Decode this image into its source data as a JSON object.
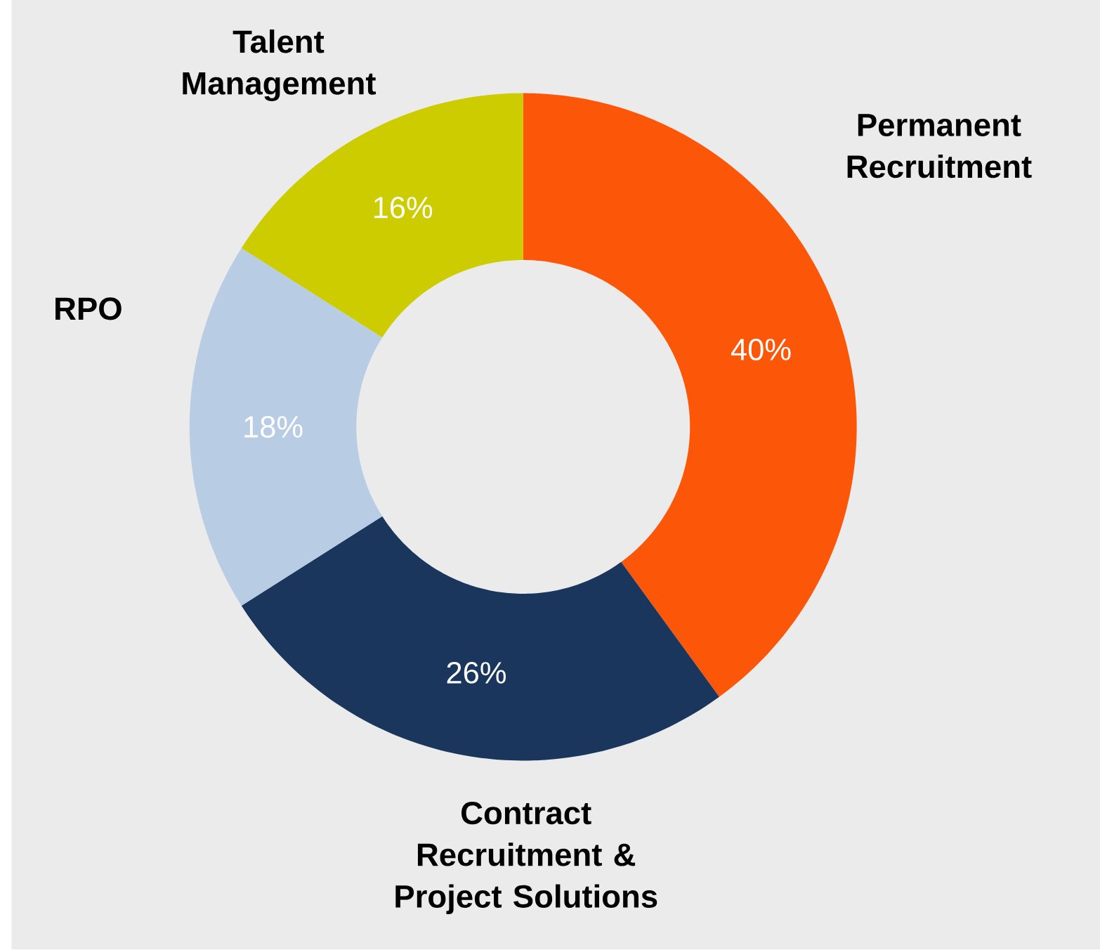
{
  "chart_data": {
    "type": "donut",
    "categories": [
      "Permanent Recruitment",
      "Contract Recruitment & Project Solutions",
      "RPO",
      "Talent Management"
    ],
    "values": [
      40,
      26,
      18,
      16
    ],
    "colors": [
      "#fc5708",
      "#1a365d",
      "#b8cde4",
      "#cccc00"
    ],
    "value_labels": [
      "40%",
      "26%",
      "18%",
      "16%"
    ]
  }
}
